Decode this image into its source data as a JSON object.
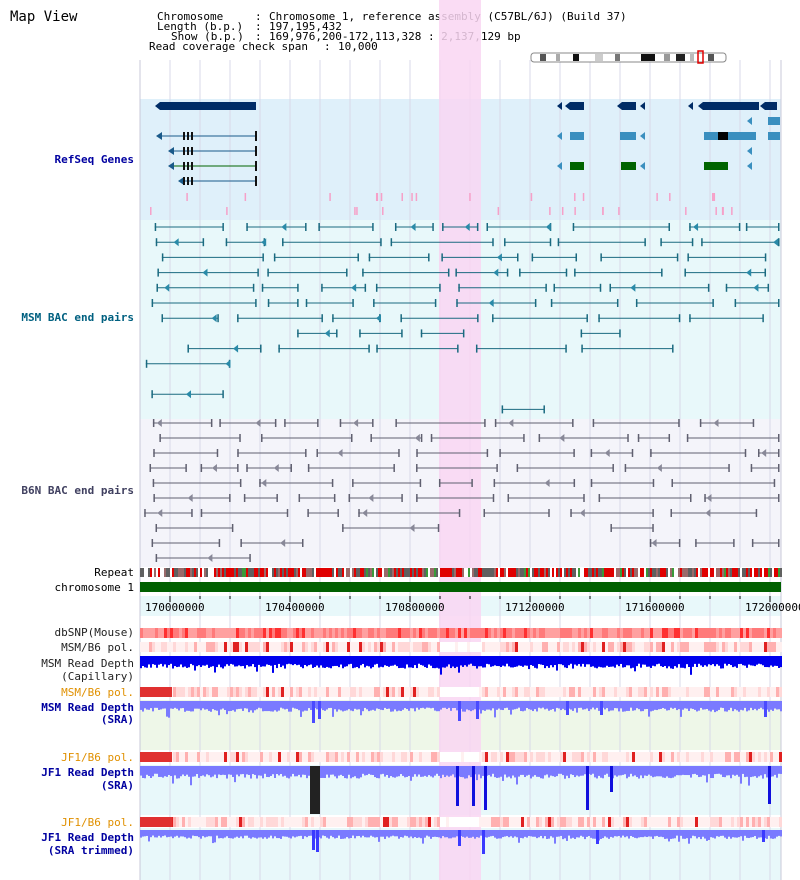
{
  "page": {
    "title": "Map View"
  },
  "info": {
    "chromosome_label": "Chromosome",
    "chromosome_value": "Chromosome 1, reference assembly (C57BL/6J) (Build 37)",
    "length_label": "Length (b.p.)",
    "length_value": "197,195,432",
    "show_label": "Show (b.p.)",
    "show_value": "169,976,200-172,113,328 : 2,137,129 bp",
    "coverage_label": "Read coverage check span",
    "coverage_value": "10,000"
  },
  "tracks": {
    "refseq": "RefSeq Genes",
    "msm_bac": "MSM BAC end pairs",
    "b6n_bac": "B6N BAC end pairs",
    "repeat": "Repeat",
    "chromosome": "chromosome 1",
    "dbsnp": "dbSNP(Mouse)",
    "msm_b6_pol_1": "MSM/B6 pol.",
    "msm_depth_cap_1": "MSM Read Depth",
    "msm_depth_cap_2": "(Capillary)",
    "msm_b6_pol_2": "MSM/B6 pol.",
    "msm_depth_sra_1": "MSM Read Depth",
    "msm_depth_sra_2": "(SRA)",
    "jf1_b6_pol_1": "JF1/B6 pol.",
    "jf1_depth_sra_1": "JF1 Read Depth",
    "jf1_depth_sra_2": "(SRA)",
    "jf1_b6_pol_2": "JF1/B6 pol.",
    "jf1_depth_trim_1": "JF1 Read Depth",
    "jf1_depth_trim_2": "(SRA trimmed)"
  },
  "axis": {
    "ticks": [
      "170000000",
      "170400000",
      "170800000",
      "171200000",
      "171600000",
      "172000000"
    ]
  },
  "colors": {
    "refseq_bg": "#dff0fa",
    "msm_bg": "#e8f8fa",
    "b6n_bg": "#f4f4fa",
    "highlight": "#f9d6f2",
    "refseq_label": "#0000a0",
    "msm_label": "#006080",
    "b6n_label": "#404060",
    "orange_label": "#e09000",
    "blue_label": "#0000a0",
    "chromosome_bar": "#006000",
    "depth_blue": "#0000ee",
    "depth_light": "#7a7aff"
  }
}
